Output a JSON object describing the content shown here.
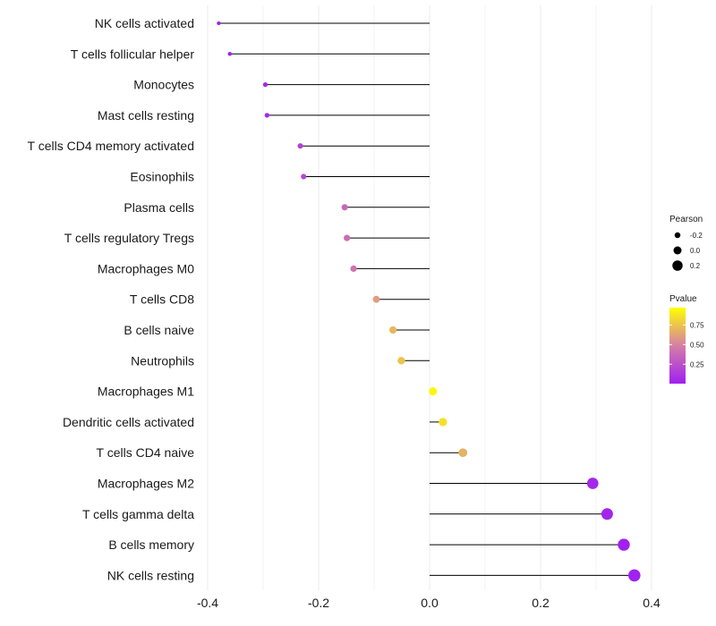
{
  "chart_data": {
    "type": "lollipop",
    "title": "",
    "xlabel": "",
    "ylabel": "",
    "xlim": [
      -0.4,
      0.4
    ],
    "x_ticks": [
      -0.4,
      -0.2,
      0.0,
      0.2,
      0.4
    ],
    "x_tick_labels": [
      "-0.4",
      "-0.2",
      "0.0",
      "0.2",
      "0.4"
    ],
    "categories": [
      "NK cells activated",
      "T cells follicular helper",
      "Monocytes",
      "Mast cells resting",
      "T cells CD4 memory activated",
      "Eosinophils",
      "Plasma cells",
      "T cells regulatory  Tregs",
      "Macrophages M0",
      "T cells CD8",
      "B cells naive",
      "Neutrophils",
      "Macrophages M1",
      "Dendritic cells activated",
      "T cells CD4 naive",
      "Macrophages M2",
      "T cells gamma delta",
      "B cells memory",
      "NK cells resting"
    ],
    "values": [
      -0.38,
      -0.36,
      -0.296,
      -0.293,
      -0.233,
      -0.227,
      -0.153,
      -0.149,
      -0.137,
      -0.096,
      -0.066,
      -0.051,
      0.006,
      0.024,
      0.06,
      0.294,
      0.32,
      0.35,
      0.369
    ],
    "pvalues": [
      0.01,
      0.01,
      0.05,
      0.05,
      0.18,
      0.2,
      0.38,
      0.4,
      0.44,
      0.62,
      0.72,
      0.77,
      0.97,
      0.88,
      0.7,
      0.04,
      0.02,
      0.005,
      0.003
    ],
    "legend_pearson": {
      "title": "Pearson",
      "labels": [
        "-0.2",
        "0.0",
        "0.2"
      ],
      "values": [
        -0.2,
        0.0,
        0.2
      ]
    },
    "legend_pvalue": {
      "title": "Pvalue",
      "labels": [
        "0.75",
        "0.50",
        "0.25"
      ],
      "values": [
        0.75,
        0.5,
        0.25
      ],
      "color_low": "#a020f0",
      "color_mid": "#d57fa6",
      "color_high": "#ffff00"
    },
    "grid": true,
    "segment_color": "#000000",
    "grid_color": "#ebebeb"
  }
}
